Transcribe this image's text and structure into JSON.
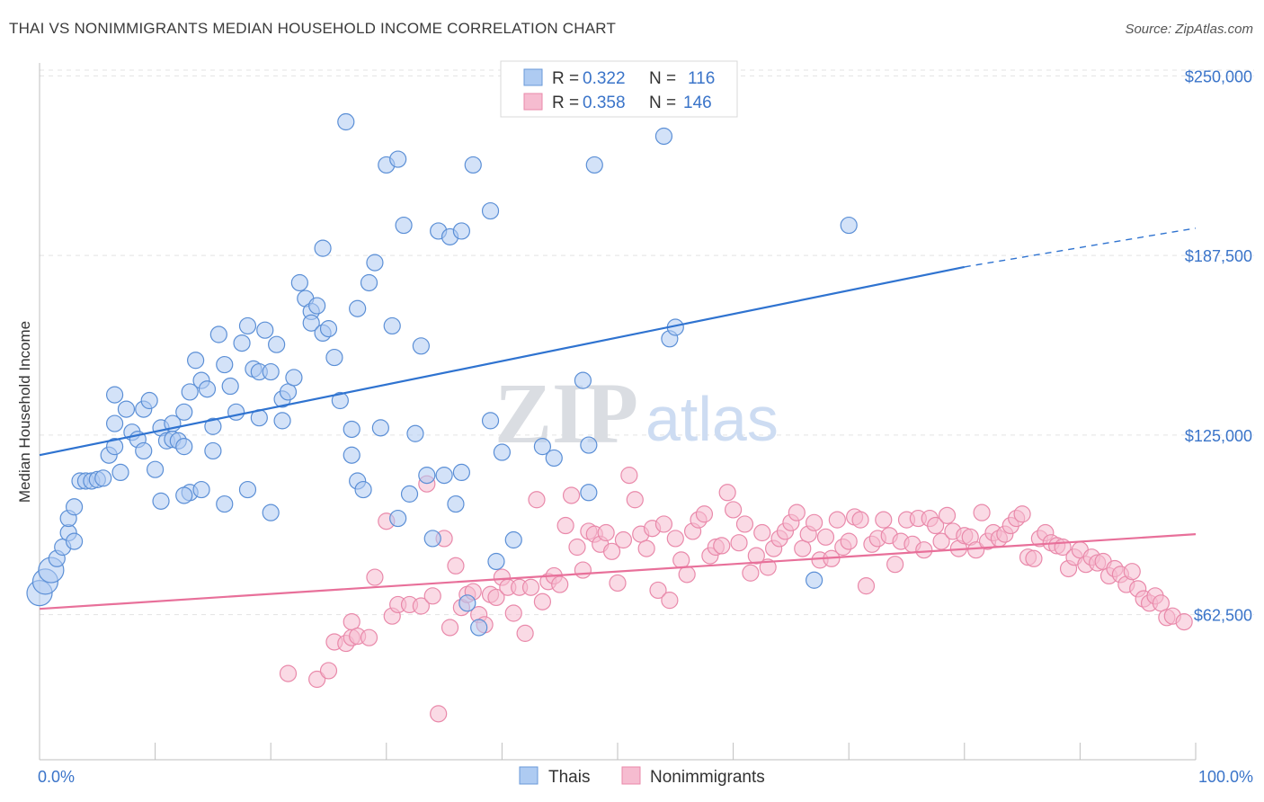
{
  "header": {
    "title": "THAI VS NONIMMIGRANTS MEDIAN HOUSEHOLD INCOME CORRELATION CHART",
    "source": "Source: ZipAtlas.com"
  },
  "watermark": {
    "zip": "ZIP",
    "atlas": "atlas"
  },
  "legend": {
    "rows": [
      {
        "r_label": "R =",
        "r_value": "0.322",
        "n_label": "N =",
        "n_value": "116",
        "color": "#aecbf2"
      },
      {
        "r_label": "R =",
        "r_value": "0.358",
        "n_label": "N =",
        "n_value": "146",
        "color": "#f6bcd0"
      }
    ]
  },
  "bottom_legend": [
    "Thais",
    "Nonimmigrants"
  ],
  "chart_data": {
    "type": "scatter",
    "title": "THAI VS NONIMMIGRANTS MEDIAN HOUSEHOLD INCOME CORRELATION CHART",
    "xlabel": "",
    "ylabel": "Median Household Income",
    "x_tick_labels": [
      "0.0%",
      "100.0%"
    ],
    "y_tick_labels": [
      "$62,500",
      "$125,000",
      "$187,500",
      "$250,000"
    ],
    "y_ticks": [
      62500,
      125000,
      187500,
      250000
    ],
    "xlim": [
      0,
      100
    ],
    "ylim": [
      12000,
      257000
    ],
    "grid": true,
    "legend_position": "top-center",
    "colors": {
      "thais_fill": "#aecbf2",
      "thais_stroke": "#5b8fd6",
      "thais_line": "#2f73d0",
      "nonimm_fill": "#f6bcd0",
      "nonimm_stroke": "#e989aa",
      "nonimm_line": "#e8709a"
    },
    "series": [
      {
        "name": "Thais",
        "trend": {
          "x": [
            0,
            80
          ],
          "y": [
            118000,
            183500
          ],
          "dashed_to": [
            100,
            197000
          ]
        },
        "points": [
          [
            0,
            70000
          ],
          [
            0.5,
            74000
          ],
          [
            1,
            78000
          ],
          [
            1.5,
            82000
          ],
          [
            2,
            86000
          ],
          [
            2.5,
            91000
          ],
          [
            3,
            88000
          ],
          [
            2.5,
            96000
          ],
          [
            3,
            100000
          ],
          [
            3.5,
            109000
          ],
          [
            4,
            109000
          ],
          [
            4.5,
            109000
          ],
          [
            5,
            109500
          ],
          [
            5.5,
            110000
          ],
          [
            6,
            118000
          ],
          [
            6.5,
            121000
          ],
          [
            7,
            112000
          ],
          [
            6.5,
            129000
          ],
          [
            7.5,
            134000
          ],
          [
            8,
            126000
          ],
          [
            8.5,
            123500
          ],
          [
            9,
            134000
          ],
          [
            9.5,
            137000
          ],
          [
            9,
            119500
          ],
          [
            10,
            113000
          ],
          [
            10.5,
            127500
          ],
          [
            11,
            123000
          ],
          [
            11.5,
            123500
          ],
          [
            12,
            123000
          ],
          [
            12.5,
            121000
          ],
          [
            12.5,
            133000
          ],
          [
            13,
            140000
          ],
          [
            13.5,
            151000
          ],
          [
            14,
            144000
          ],
          [
            14.5,
            141000
          ],
          [
            15,
            128000
          ],
          [
            15,
            119500
          ],
          [
            13,
            105000
          ],
          [
            15.5,
            160000
          ],
          [
            16,
            149500
          ],
          [
            16.5,
            142000
          ],
          [
            17,
            133000
          ],
          [
            17.5,
            157000
          ],
          [
            18,
            163000
          ],
          [
            18.5,
            148000
          ],
          [
            19,
            147000
          ],
          [
            19.5,
            161500
          ],
          [
            20,
            147000
          ],
          [
            20.5,
            156500
          ],
          [
            21,
            137500
          ],
          [
            21.5,
            140000
          ],
          [
            22,
            145000
          ],
          [
            22.5,
            178000
          ],
          [
            23,
            172500
          ],
          [
            23.5,
            168000
          ],
          [
            23.5,
            164000
          ],
          [
            24,
            170000
          ],
          [
            24.5,
            160500
          ],
          [
            25,
            162000
          ],
          [
            24.5,
            190000
          ],
          [
            25.5,
            152000
          ],
          [
            26,
            137000
          ],
          [
            26.5,
            234000
          ],
          [
            27,
            127000
          ],
          [
            27.5,
            109000
          ],
          [
            27,
            118000
          ],
          [
            28,
            106000
          ],
          [
            27.5,
            169000
          ],
          [
            28.5,
            178000
          ],
          [
            29,
            185000
          ],
          [
            29.5,
            127500
          ],
          [
            30,
            219000
          ],
          [
            30.5,
            163000
          ],
          [
            31,
            221000
          ],
          [
            31,
            96000
          ],
          [
            31.5,
            198000
          ],
          [
            32,
            104500
          ],
          [
            32.5,
            125500
          ],
          [
            33,
            156000
          ],
          [
            33.5,
            111000
          ],
          [
            34,
            89000
          ],
          [
            34.5,
            196000
          ],
          [
            35,
            111000
          ],
          [
            35.5,
            194000
          ],
          [
            36,
            101000
          ],
          [
            36.5,
            112000
          ],
          [
            37,
            66500
          ],
          [
            36.5,
            196000
          ],
          [
            37.5,
            219000
          ],
          [
            38,
            58000
          ],
          [
            39,
            203000
          ],
          [
            39,
            130000
          ],
          [
            39.5,
            81000
          ],
          [
            40,
            119000
          ],
          [
            41,
            88500
          ],
          [
            43.5,
            121000
          ],
          [
            44.5,
            117000
          ],
          [
            47,
            144000
          ],
          [
            47.5,
            121500
          ],
          [
            47.5,
            105000
          ],
          [
            48,
            219000
          ],
          [
            54,
            229000
          ],
          [
            54.5,
            158500
          ],
          [
            55,
            162500
          ],
          [
            67,
            74500
          ],
          [
            70,
            198000
          ],
          [
            20,
            98000
          ],
          [
            10.5,
            102000
          ],
          [
            12.5,
            104000
          ],
          [
            14,
            106000
          ],
          [
            16,
            101000
          ],
          [
            18,
            106000
          ],
          [
            6.5,
            139000
          ],
          [
            11.5,
            129000
          ],
          [
            19,
            131000
          ],
          [
            21,
            130000
          ]
        ]
      },
      {
        "name": "Nonimmigrants",
        "trend": {
          "x": [
            0,
            100
          ],
          "y": [
            64500,
            90500
          ]
        },
        "points": [
          [
            21.5,
            42000
          ],
          [
            24,
            40000
          ],
          [
            25,
            43000
          ],
          [
            25.5,
            53000
          ],
          [
            26.5,
            52500
          ],
          [
            27,
            54500
          ],
          [
            27,
            60000
          ],
          [
            27.5,
            55000
          ],
          [
            28.5,
            54500
          ],
          [
            29,
            75500
          ],
          [
            30,
            95000
          ],
          [
            30.5,
            62000
          ],
          [
            31,
            66000
          ],
          [
            32,
            66000
          ],
          [
            33,
            65500
          ],
          [
            33.5,
            108000
          ],
          [
            34,
            69000
          ],
          [
            34.5,
            28000
          ],
          [
            35,
            89000
          ],
          [
            35.5,
            58000
          ],
          [
            36,
            79500
          ],
          [
            36.5,
            65000
          ],
          [
            37,
            69500
          ],
          [
            37.5,
            70500
          ],
          [
            38,
            62500
          ],
          [
            38.5,
            59000
          ],
          [
            39,
            69500
          ],
          [
            39.5,
            68500
          ],
          [
            40,
            75500
          ],
          [
            40.5,
            72000
          ],
          [
            41,
            63000
          ],
          [
            41.5,
            72000
          ],
          [
            42,
            56000
          ],
          [
            42.5,
            72000
          ],
          [
            43,
            102500
          ],
          [
            43.5,
            67000
          ],
          [
            44,
            74000
          ],
          [
            44.5,
            76000
          ],
          [
            45,
            73000
          ],
          [
            45.5,
            93500
          ],
          [
            46,
            104000
          ],
          [
            46.5,
            86000
          ],
          [
            47,
            78000
          ],
          [
            47.5,
            91500
          ],
          [
            48,
            90500
          ],
          [
            48.5,
            87000
          ],
          [
            49,
            91000
          ],
          [
            49.5,
            84500
          ],
          [
            50,
            73500
          ],
          [
            50.5,
            88500
          ],
          [
            51,
            111000
          ],
          [
            51.5,
            102500
          ],
          [
            52,
            90500
          ],
          [
            52.5,
            85500
          ],
          [
            53,
            92500
          ],
          [
            53.5,
            71000
          ],
          [
            54,
            94000
          ],
          [
            54.5,
            67500
          ],
          [
            55,
            89000
          ],
          [
            55.5,
            81500
          ],
          [
            56,
            76500
          ],
          [
            56.5,
            91500
          ],
          [
            57,
            95500
          ],
          [
            57.5,
            97500
          ],
          [
            58,
            83000
          ],
          [
            58.5,
            86000
          ],
          [
            59,
            86500
          ],
          [
            59.5,
            105000
          ],
          [
            60,
            99000
          ],
          [
            60.5,
            87500
          ],
          [
            61,
            94000
          ],
          [
            61.5,
            77000
          ],
          [
            62,
            83000
          ],
          [
            62.5,
            91000
          ],
          [
            63,
            79000
          ],
          [
            63.5,
            85500
          ],
          [
            64,
            89000
          ],
          [
            64.5,
            91500
          ],
          [
            65,
            94500
          ],
          [
            65.5,
            98000
          ],
          [
            66,
            85500
          ],
          [
            66.5,
            90500
          ],
          [
            67,
            94500
          ],
          [
            67.5,
            81500
          ],
          [
            68,
            89500
          ],
          [
            68.5,
            82000
          ],
          [
            69,
            95500
          ],
          [
            69.5,
            86000
          ],
          [
            70,
            88000
          ],
          [
            70.5,
            96500
          ],
          [
            71,
            95500
          ],
          [
            71.5,
            72500
          ],
          [
            72,
            87000
          ],
          [
            72.5,
            89000
          ],
          [
            73,
            95500
          ],
          [
            73.5,
            90000
          ],
          [
            74,
            80000
          ],
          [
            74.5,
            88000
          ],
          [
            75,
            95500
          ],
          [
            75.5,
            87000
          ],
          [
            76,
            96000
          ],
          [
            76.5,
            85000
          ],
          [
            77,
            96000
          ],
          [
            77.5,
            93500
          ],
          [
            78,
            88000
          ],
          [
            78.5,
            97000
          ],
          [
            79,
            91500
          ],
          [
            79.5,
            85500
          ],
          [
            80,
            90000
          ],
          [
            80.5,
            89500
          ],
          [
            81,
            85000
          ],
          [
            81.5,
            98000
          ],
          [
            82,
            88000
          ],
          [
            82.5,
            91000
          ],
          [
            83,
            89000
          ],
          [
            83.5,
            90500
          ],
          [
            84,
            93500
          ],
          [
            84.5,
            96000
          ],
          [
            85,
            97500
          ],
          [
            85.5,
            82500
          ],
          [
            86,
            82000
          ],
          [
            86.5,
            89000
          ],
          [
            87,
            91000
          ],
          [
            87.5,
            87500
          ],
          [
            88,
            86500
          ],
          [
            88.5,
            86000
          ],
          [
            89,
            78500
          ],
          [
            89.5,
            82500
          ],
          [
            90,
            85000
          ],
          [
            90.5,
            80000
          ],
          [
            91,
            82500
          ],
          [
            91.5,
            80500
          ],
          [
            92,
            81000
          ],
          [
            92.5,
            76000
          ],
          [
            93,
            78500
          ],
          [
            93.5,
            76500
          ],
          [
            94,
            73000
          ],
          [
            94.5,
            77500
          ],
          [
            95,
            71500
          ],
          [
            95.5,
            68000
          ],
          [
            96,
            66500
          ],
          [
            96.5,
            69000
          ],
          [
            97,
            66500
          ],
          [
            97.5,
            61500
          ],
          [
            98,
            62000
          ],
          [
            99,
            60000
          ]
        ]
      }
    ]
  }
}
